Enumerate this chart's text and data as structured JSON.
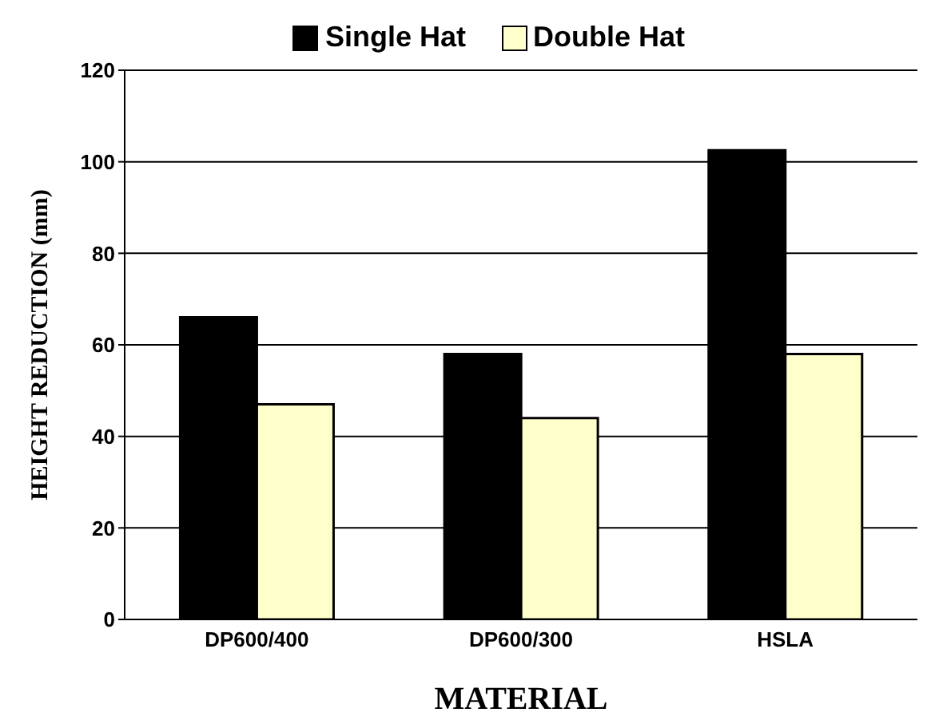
{
  "chart_data": {
    "type": "bar",
    "xlabel": "MATERIAL",
    "ylabel": "HEIGHT REDUCTION (mm)",
    "categories": [
      "DP600/400",
      "DP600/300",
      "HSLA"
    ],
    "series": [
      {
        "name": "Single Hat",
        "color": "#000000",
        "values": [
          66,
          58,
          102.5
        ]
      },
      {
        "name": "Double Hat",
        "color": "#ffffcc",
        "values": [
          47,
          44,
          58
        ]
      }
    ],
    "ylim": [
      0,
      120
    ],
    "yticks": [
      0,
      20,
      40,
      60,
      80,
      100,
      120
    ],
    "grid": "y",
    "legend": "top"
  }
}
